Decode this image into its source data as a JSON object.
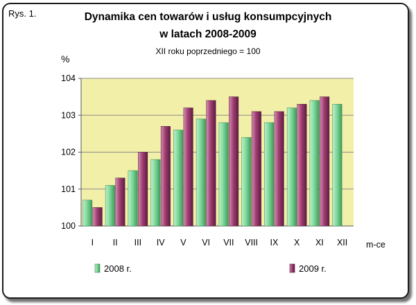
{
  "figure_label": "Rys. 1.",
  "chart_data": {
    "type": "bar",
    "title_line1": "Dynamika cen towarów i usług konsumpcyjnych",
    "title_line2": "w latach 2008-2009",
    "subtitle": "XII roku poprzedniego = 100",
    "ylabel": "%",
    "xlabel": "m-ce",
    "ylim": [
      100,
      104
    ],
    "yticks": [
      100,
      101,
      102,
      103,
      104
    ],
    "categories": [
      "I",
      "II",
      "III",
      "IV",
      "V",
      "VI",
      "VII",
      "VIII",
      "IX",
      "X",
      "XI",
      "XII"
    ],
    "series": [
      {
        "name": "2008 r.",
        "color": "#7ed99a",
        "values": [
          100.7,
          101.1,
          101.5,
          101.8,
          102.6,
          102.9,
          102.8,
          102.4,
          102.8,
          103.2,
          103.4,
          103.3
        ]
      },
      {
        "name": "2009 r.",
        "color": "#a13e73",
        "values": [
          100.5,
          101.3,
          102.0,
          102.7,
          103.2,
          103.4,
          103.5,
          103.1,
          103.1,
          103.3,
          103.5,
          null
        ]
      }
    ],
    "plot_background": "#f2f0a8",
    "grid": true,
    "legend": "bottom"
  }
}
